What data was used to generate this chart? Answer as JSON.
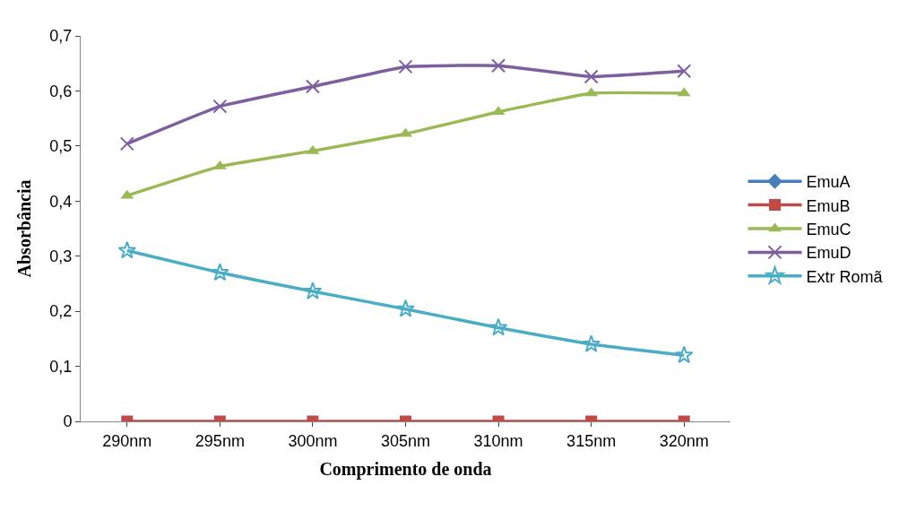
{
  "chart_data": {
    "type": "line",
    "xlabel": "Comprimento de onda",
    "ylabel": "Absorbância",
    "categories": [
      "290nm",
      "295nm",
      "300nm",
      "305nm",
      "310nm",
      "315nm",
      "320nm"
    ],
    "series": [
      {
        "name": "EmuA",
        "color": "#4a7ebb",
        "marker": "diamond",
        "values": [
          null,
          null,
          null,
          null,
          null,
          null,
          null
        ]
      },
      {
        "name": "EmuB",
        "color": "#be4b48",
        "marker": "square",
        "values": [
          0,
          0,
          0,
          0,
          0,
          0,
          0
        ]
      },
      {
        "name": "EmuC",
        "color": "#98b954",
        "marker": "triangle",
        "values": [
          0.41,
          0.463,
          0.491,
          0.522,
          0.562,
          0.596,
          0.596
        ]
      },
      {
        "name": "EmuD",
        "color": "#7d5fa0",
        "marker": "cross",
        "values": [
          0.504,
          0.572,
          0.608,
          0.644,
          0.646,
          0.626,
          0.636
        ]
      },
      {
        "name": "Extr Romã",
        "color": "#4bacc6",
        "marker": "star",
        "values": [
          0.31,
          0.27,
          0.236,
          0.204,
          0.17,
          0.14,
          0.12
        ]
      }
    ],
    "ylim": [
      0,
      0.7
    ],
    "yticks": [
      {
        "value": 0,
        "label": "0"
      },
      {
        "value": 0.1,
        "label": "0,1"
      },
      {
        "value": 0.2,
        "label": "0,2"
      },
      {
        "value": 0.3,
        "label": "0,3"
      },
      {
        "value": 0.4,
        "label": "0,4"
      },
      {
        "value": 0.5,
        "label": "0,5"
      },
      {
        "value": 0.6,
        "label": "0,6"
      },
      {
        "value": 0.7,
        "label": "0,7"
      }
    ],
    "legend": "right"
  }
}
